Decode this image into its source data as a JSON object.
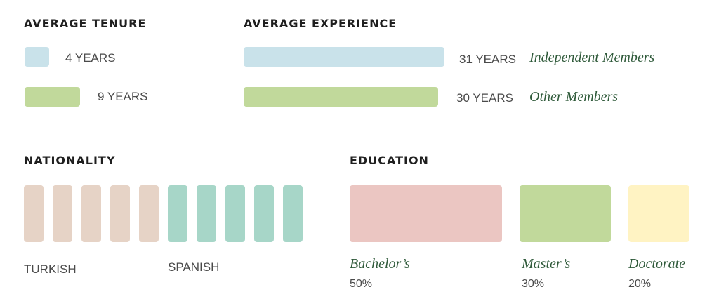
{
  "chart_data": [
    {
      "type": "bar",
      "title": "AVERAGE TENURE",
      "categories": [
        "Independent Members",
        "Other Members"
      ],
      "values": [
        4,
        9
      ],
      "value_labels": [
        "4 YEARS",
        "9 YEARS"
      ],
      "unit": "YEARS",
      "colors": [
        "#c9e2ea",
        "#c1d99b"
      ]
    },
    {
      "type": "bar",
      "title": "AVERAGE EXPERIENCE",
      "categories": [
        "Independent Members",
        "Other Members"
      ],
      "values": [
        31,
        30
      ],
      "value_labels": [
        "31 YEARS",
        "30 YEARS"
      ],
      "unit": "YEARS",
      "legend": [
        "Independent Members",
        "Other Members"
      ],
      "colors": [
        "#c9e2ea",
        "#c1d99b"
      ]
    },
    {
      "type": "bar",
      "title": "NATIONALITY",
      "categories": [
        "TURKISH",
        "SPANISH"
      ],
      "values": [
        5,
        5
      ],
      "colors": [
        "#e6d3c6",
        "#a7d6c8"
      ]
    },
    {
      "type": "bar",
      "title": "EDUCATION",
      "categories": [
        "Bachelor’s",
        "Master’s",
        "Doctorate"
      ],
      "values": [
        50,
        30,
        20
      ],
      "value_labels": [
        "50%",
        "30%",
        "20%"
      ],
      "unit": "%",
      "colors": [
        "#ebc6c2",
        "#c1d99b",
        "#fff3c3"
      ]
    }
  ]
}
